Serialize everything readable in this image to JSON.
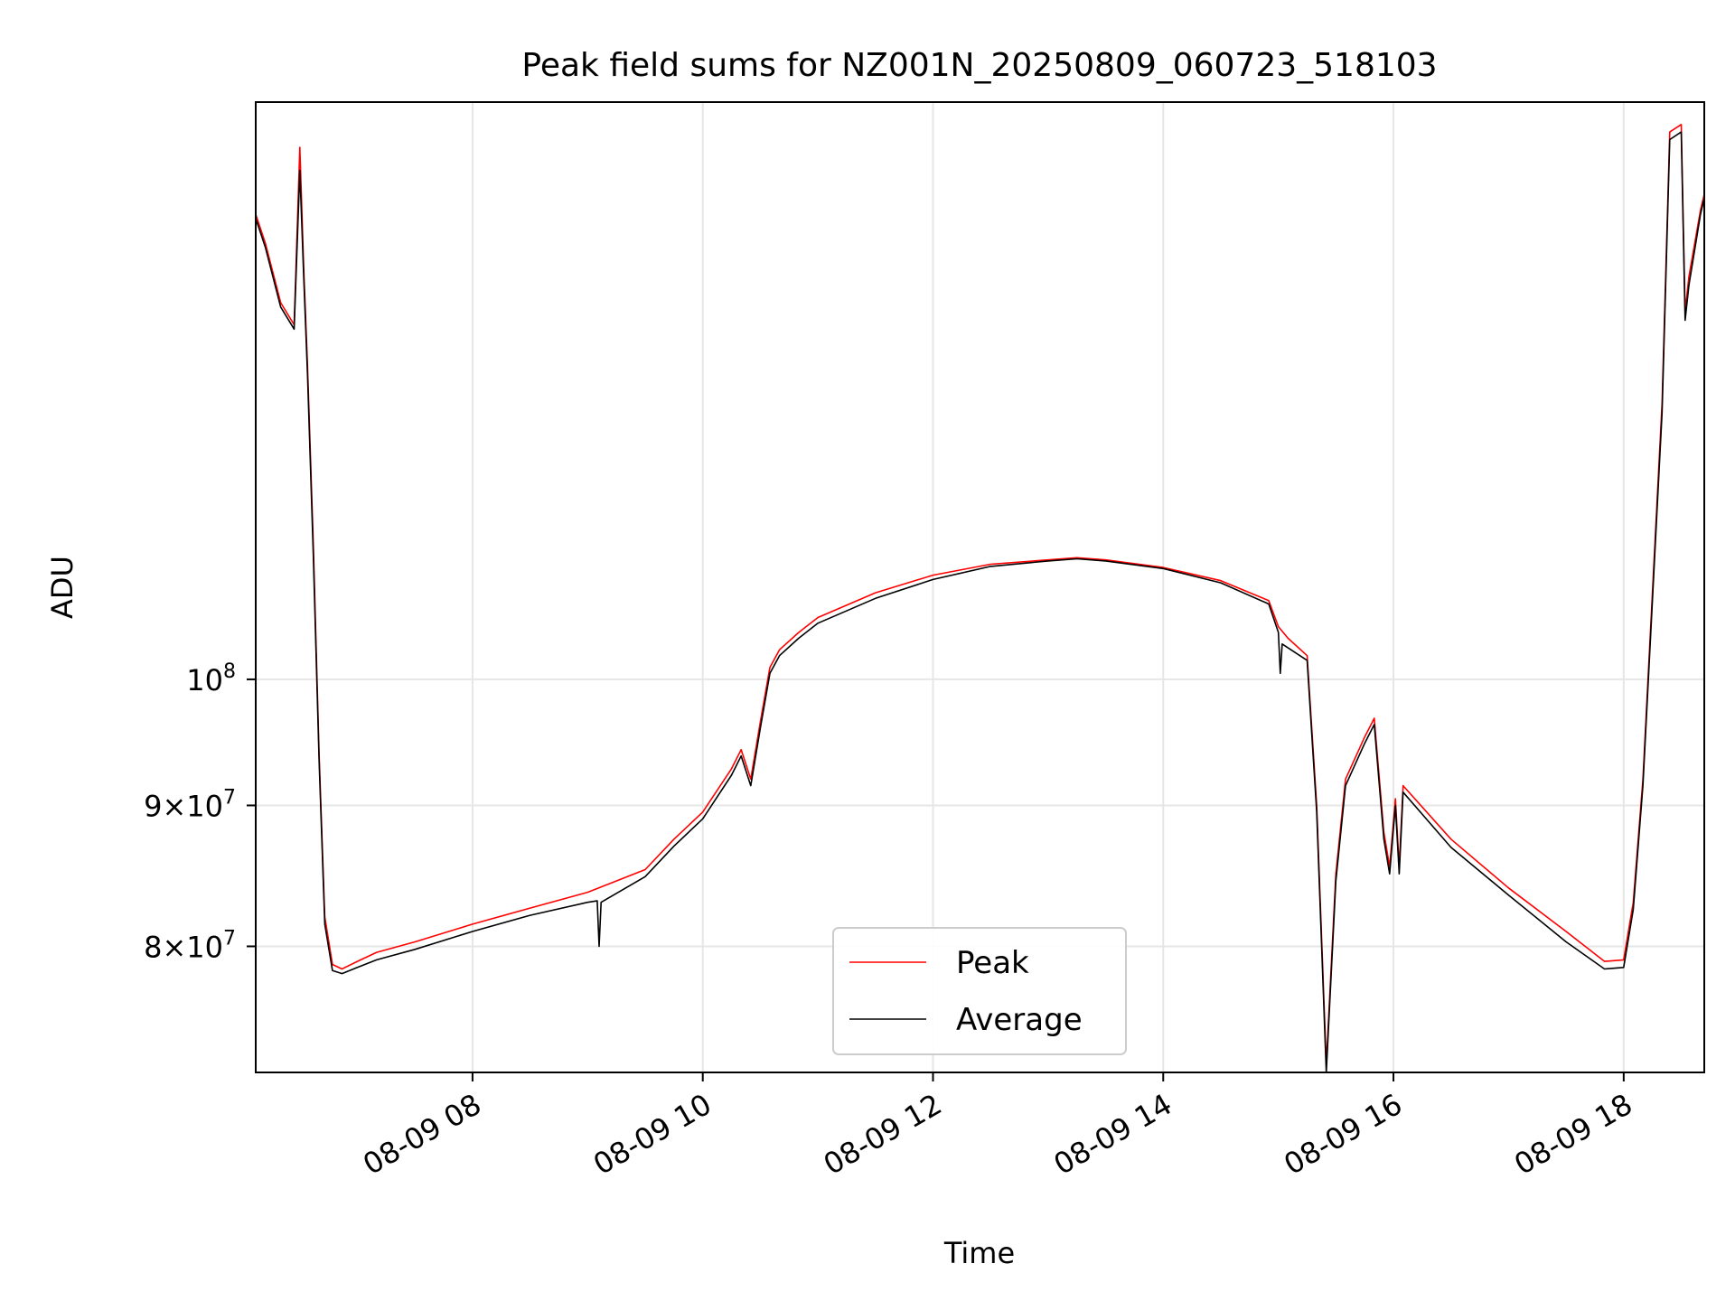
{
  "chart_data": {
    "type": "line",
    "title": "Peak field sums for NZ001N_20250809_060723_518103",
    "xlabel": "Time",
    "ylabel": "ADU",
    "yscale": "log",
    "xlim": [
      "2025-08-09T06:07",
      "2025-08-09T18:42"
    ],
    "ylim": [
      72000000,
      162000000
    ],
    "grid": true,
    "legend": "lower-center",
    "x_ticks": [
      {
        "value": "2025-08-09T08:00",
        "label": "08-09 08"
      },
      {
        "value": "2025-08-09T10:00",
        "label": "08-09 10"
      },
      {
        "value": "2025-08-09T12:00",
        "label": "08-09 12"
      },
      {
        "value": "2025-08-09T14:00",
        "label": "08-09 14"
      },
      {
        "value": "2025-08-09T16:00",
        "label": "08-09 16"
      },
      {
        "value": "2025-08-09T18:00",
        "label": "08-09 18"
      }
    ],
    "y_ticks": [
      {
        "value": 80000000,
        "base": "8",
        "exp": "7"
      },
      {
        "value": 90000000,
        "base": "9",
        "exp": "7"
      },
      {
        "value": 100000000,
        "base": "",
        "exp": "8"
      }
    ],
    "series": [
      {
        "name": "Peak",
        "color": "#ff0000",
        "x": [
          "2025-08-09T06:07",
          "2025-08-09T06:12",
          "2025-08-09T06:20",
          "2025-08-09T06:27",
          "2025-08-09T06:30",
          "2025-08-09T06:32",
          "2025-08-09T06:34",
          "2025-08-09T06:37",
          "2025-08-09T06:40",
          "2025-08-09T06:43",
          "2025-08-09T06:47",
          "2025-08-09T06:52",
          "2025-08-09T07:00",
          "2025-08-09T07:10",
          "2025-08-09T07:30",
          "2025-08-09T08:00",
          "2025-08-09T08:30",
          "2025-08-09T09:00",
          "2025-08-09T09:30",
          "2025-08-09T09:45",
          "2025-08-09T10:00",
          "2025-08-09T10:15",
          "2025-08-09T10:20",
          "2025-08-09T10:25",
          "2025-08-09T10:30",
          "2025-08-09T10:35",
          "2025-08-09T10:40",
          "2025-08-09T10:50",
          "2025-08-09T11:00",
          "2025-08-09T11:30",
          "2025-08-09T12:00",
          "2025-08-09T12:30",
          "2025-08-09T13:00",
          "2025-08-09T13:15",
          "2025-08-09T13:30",
          "2025-08-09T14:00",
          "2025-08-09T14:30",
          "2025-08-09T14:55",
          "2025-08-09T15:00",
          "2025-08-09T15:05",
          "2025-08-09T15:15",
          "2025-08-09T15:20",
          "2025-08-09T15:25",
          "2025-08-09T15:30",
          "2025-08-09T15:35",
          "2025-08-09T15:45",
          "2025-08-09T15:50",
          "2025-08-09T15:55",
          "2025-08-09T15:58",
          "2025-08-09T16:01",
          "2025-08-09T16:03",
          "2025-08-09T16:05",
          "2025-08-09T16:30",
          "2025-08-09T17:00",
          "2025-08-09T17:30",
          "2025-08-09T17:50",
          "2025-08-09T18:00",
          "2025-08-09T18:05",
          "2025-08-09T18:10",
          "2025-08-09T18:20",
          "2025-08-09T18:24",
          "2025-08-09T18:30",
          "2025-08-09T18:32",
          "2025-08-09T18:34",
          "2025-08-09T18:40",
          "2025-08-09T18:42"
        ],
        "y": [
          147500000,
          144000000,
          137000000,
          134500000,
          156000000,
          141000000,
          130000000,
          112000000,
          94000000,
          82000000,
          78800000,
          78500000,
          79000000,
          79600000,
          80300000,
          81500000,
          82600000,
          83700000,
          85300000,
          87500000,
          89500000,
          92800000,
          94300000,
          92000000,
          96500000,
          101000000,
          102500000,
          104000000,
          105300000,
          107500000,
          109100000,
          110100000,
          110500000,
          110700000,
          110500000,
          109800000,
          108600000,
          106800000,
          104500000,
          103500000,
          102000000,
          90000000,
          72500000,
          85000000,
          92000000,
          95300000,
          96800000,
          88000000,
          85500000,
          90500000,
          85500000,
          91500000,
          87500000,
          84000000,
          81000000,
          79000000,
          79100000,
          83000000,
          92000000,
          126000000,
          158000000,
          159000000,
          136000000,
          140000000,
          148000000,
          150000000
        ]
      },
      {
        "name": "Average",
        "color": "#000000",
        "x": [
          "2025-08-09T06:07",
          "2025-08-09T06:12",
          "2025-08-09T06:20",
          "2025-08-09T06:27",
          "2025-08-09T06:30",
          "2025-08-09T06:32",
          "2025-08-09T06:34",
          "2025-08-09T06:37",
          "2025-08-09T06:40",
          "2025-08-09T06:43",
          "2025-08-09T06:47",
          "2025-08-09T06:52",
          "2025-08-09T07:00",
          "2025-08-09T07:10",
          "2025-08-09T07:30",
          "2025-08-09T08:00",
          "2025-08-09T08:30",
          "2025-08-09T09:00",
          "2025-08-09T09:05",
          "2025-08-09T09:06",
          "2025-08-09T09:07",
          "2025-08-09T09:30",
          "2025-08-09T09:45",
          "2025-08-09T10:00",
          "2025-08-09T10:15",
          "2025-08-09T10:20",
          "2025-08-09T10:25",
          "2025-08-09T10:30",
          "2025-08-09T10:35",
          "2025-08-09T10:40",
          "2025-08-09T10:50",
          "2025-08-09T11:00",
          "2025-08-09T11:30",
          "2025-08-09T12:00",
          "2025-08-09T12:30",
          "2025-08-09T13:00",
          "2025-08-09T13:15",
          "2025-08-09T13:30",
          "2025-08-09T14:00",
          "2025-08-09T14:30",
          "2025-08-09T14:55",
          "2025-08-09T15:00",
          "2025-08-09T15:01",
          "2025-08-09T15:02",
          "2025-08-09T15:15",
          "2025-08-09T15:20",
          "2025-08-09T15:25",
          "2025-08-09T15:30",
          "2025-08-09T15:35",
          "2025-08-09T15:45",
          "2025-08-09T15:50",
          "2025-08-09T15:55",
          "2025-08-09T15:58",
          "2025-08-09T16:01",
          "2025-08-09T16:03",
          "2025-08-09T16:05",
          "2025-08-09T16:30",
          "2025-08-09T17:00",
          "2025-08-09T17:30",
          "2025-08-09T17:50",
          "2025-08-09T18:00",
          "2025-08-09T18:05",
          "2025-08-09T18:10",
          "2025-08-09T18:20",
          "2025-08-09T18:24",
          "2025-08-09T18:30",
          "2025-08-09T18:32",
          "2025-08-09T18:34",
          "2025-08-09T18:40",
          "2025-08-09T18:42"
        ],
        "y": [
          147000000,
          143500000,
          136500000,
          134000000,
          153000000,
          140000000,
          129000000,
          111000000,
          93500000,
          81500000,
          78400000,
          78200000,
          78600000,
          79100000,
          79800000,
          81000000,
          82100000,
          83000000,
          83100000,
          80000000,
          83000000,
          84800000,
          87000000,
          89000000,
          92300000,
          93800000,
          91500000,
          96000000,
          100500000,
          102000000,
          103500000,
          104800000,
          107000000,
          108700000,
          109900000,
          110400000,
          110600000,
          110400000,
          109700000,
          108400000,
          106500000,
          104000000,
          100500000,
          103000000,
          101600000,
          89500000,
          72000000,
          84500000,
          91500000,
          94800000,
          96300000,
          87500000,
          85000000,
          90000000,
          85000000,
          91000000,
          86900000,
          83500000,
          80300000,
          78500000,
          78600000,
          82500000,
          91500000,
          125000000,
          157000000,
          158000000,
          135000000,
          139000000,
          147500000,
          149500000
        ]
      }
    ]
  }
}
